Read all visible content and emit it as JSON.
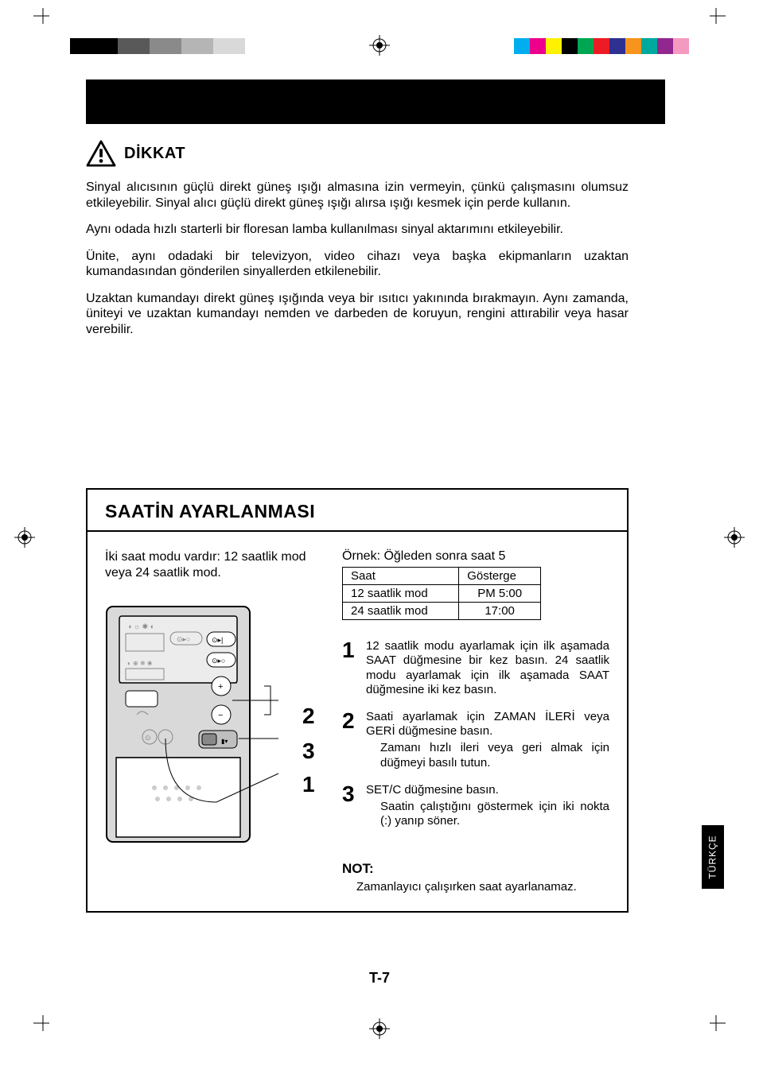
{
  "printMarks": {
    "leftStrip": [
      "#000000",
      "#000000",
      "#000000",
      "#595959",
      "#595959",
      "#8a8a8a",
      "#8a8a8a",
      "#b5b5b5",
      "#b5b5b5",
      "#d9d9d9",
      "#d9d9d9"
    ],
    "rightStrip": [
      "#00aeef",
      "#ec008c",
      "#fff200",
      "#000000",
      "#00a651",
      "#ed1c24",
      "#2e3192",
      "#f7941d",
      "#00a99d",
      "#92278f",
      "#f49ac1"
    ]
  },
  "caution": {
    "title": "DİKKAT",
    "paragraphs": [
      "Sinyal alıcısının güçlü direkt güneş ışığı almasına izin vermeyin, çünkü çalışmasını olumsuz etkileyebilir. Sinyal alıcı güçlü direkt güneş ışığı alırsa ışığı kesmek için perde kullanın.",
      "Aynı odada hızlı starterli bir floresan lamba kullanılması sinyal aktarımını etkileyebilir.",
      "Ünite, aynı odadaki bir televizyon, video cihazı veya başka ekipmanların uzaktan kumandasından gönderilen sinyallerden etkilenebilir.",
      "Uzaktan kumandayı direkt güneş ışığında veya bir ısıtıcı yakınında bırakmayın. Aynı zamanda, üniteyi ve uzaktan kumandayı nemden ve darbeden de koruyun, rengini attırabilir veya hasar verebilir."
    ]
  },
  "section": {
    "title": "SAATİN AYARLANMASI",
    "intro": "İki saat modu vardır: 12 saatlik mod veya 24 saatlik mod.",
    "example": "Örnek: Öğleden sonra saat 5",
    "table": {
      "headers": [
        "Saat",
        "Gösterge"
      ],
      "rows": [
        [
          "12 saatlik mod",
          "PM   5:00"
        ],
        [
          "24 saatlik mod",
          "17:00"
        ]
      ]
    },
    "steps": [
      {
        "num": "1",
        "text": "12 saatlik modu ayarlamak için ilk aşamada SAAT düğmesine bir kez basın. 24 saatlik modu ayarlamak için ilk aşamada SAAT düğmesine iki kez basın."
      },
      {
        "num": "2",
        "text": "Saati ayarlamak için ZAMAN İLERİ veya GERİ düğmesine basın.",
        "sub": "Zamanı hızlı ileri veya geri almak için düğmeyi basılı tutun."
      },
      {
        "num": "3",
        "text": "SET/C düğmesine basın.",
        "sub": "Saatin çalıştığını göstermek için iki nokta (:) yanıp söner."
      }
    ],
    "callouts": {
      "c1": "1",
      "c2": "2",
      "c3": "3"
    },
    "note": {
      "label": "NOT:",
      "text": "Zamanlayıcı çalışırken saat ayarlanamaz."
    }
  },
  "langTab": "TÜRKÇE",
  "pageNumber": "T-7"
}
